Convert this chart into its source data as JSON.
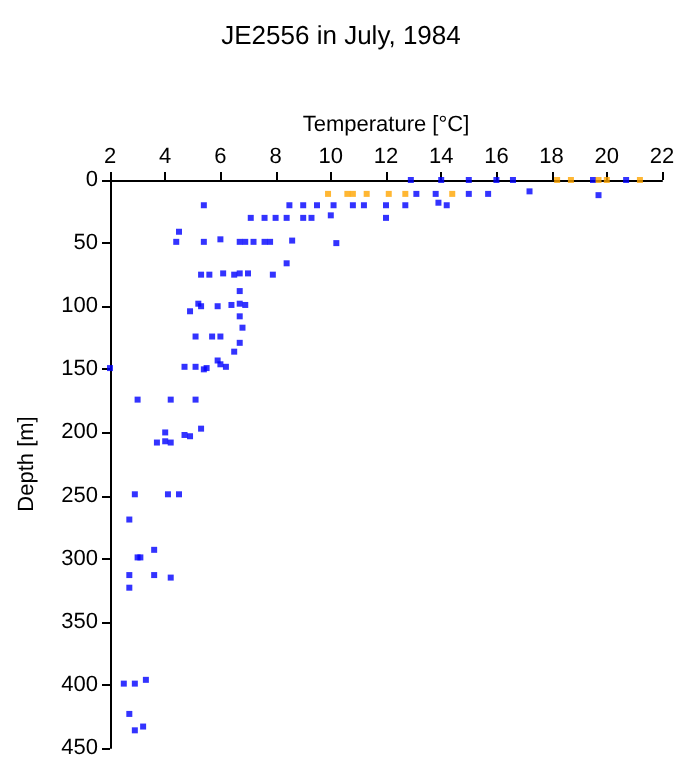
{
  "chart_data": {
    "type": "scatter",
    "title": "JE2556 in July, 1984",
    "xlabel": "Temperature [°C]",
    "ylabel": "Depth [m]",
    "xlim": [
      2,
      22
    ],
    "xticks": [
      2,
      4,
      6,
      8,
      10,
      12,
      14,
      16,
      18,
      20,
      22
    ],
    "ylim": [
      450,
      0
    ],
    "yticks": [
      0,
      50,
      100,
      150,
      200,
      250,
      300,
      350,
      400,
      450
    ],
    "grid": false,
    "marker": "square",
    "series": [
      {
        "color": "#0000ff",
        "x": [
          12.9,
          14.0,
          15.0,
          16.0,
          16.6,
          19.5,
          20.7,
          13.1,
          13.8,
          15.0,
          15.7,
          17.2,
          19.7,
          5.4,
          8.5,
          9.0,
          9.5,
          10.1,
          10.8,
          11.2,
          12.0,
          12.7,
          13.9,
          14.2,
          4.5,
          7.1,
          7.6,
          8.0,
          8.4,
          9.0,
          9.3,
          10.0,
          12.0,
          4.4,
          5.4,
          6.0,
          6.7,
          6.9,
          7.2,
          7.6,
          7.8,
          8.6,
          10.2,
          8.4,
          5.3,
          5.6,
          6.1,
          6.5,
          6.7,
          7.0,
          7.9,
          6.7,
          4.9,
          5.2,
          5.3,
          5.9,
          6.4,
          6.7,
          6.9,
          6.7,
          6.8,
          6.7,
          6.5,
          5.1,
          5.7,
          6.0,
          5.9,
          6.0,
          6.2,
          2.0,
          4.7,
          5.1,
          5.4,
          5.5,
          3.0,
          4.2,
          5.1,
          4.0,
          4.0,
          3.7,
          4.2,
          4.7,
          4.9,
          5.3,
          2.9,
          4.1,
          4.5,
          2.7,
          3.0,
          3.1,
          3.6,
          2.7,
          3.6,
          4.2,
          2.7,
          2.5,
          2.9,
          3.3,
          2.7,
          2.9,
          3.2
        ],
        "values": [
          0,
          0,
          0,
          0,
          0,
          0,
          0,
          11,
          11,
          11,
          11,
          9,
          12,
          20,
          20,
          20,
          20,
          20,
          20,
          20,
          20,
          20,
          18,
          20,
          41,
          30,
          30,
          30,
          30,
          30,
          30,
          28,
          30,
          49,
          49,
          47,
          49,
          49,
          49,
          49,
          49,
          48,
          50,
          66,
          75,
          75,
          74,
          75,
          74,
          74,
          75,
          88,
          104,
          98,
          100,
          100,
          99,
          98,
          99,
          108,
          117,
          129,
          136,
          124,
          124,
          124,
          143,
          146,
          148,
          149,
          148,
          148,
          150,
          149,
          174,
          174,
          174,
          200,
          207,
          208,
          208,
          202,
          203,
          197,
          249,
          249,
          249,
          269,
          299,
          299,
          293,
          313,
          313,
          315,
          323,
          399,
          399,
          396,
          423,
          436,
          433
        ]
      },
      {
        "color": "#ffa500",
        "x": [
          18.2,
          18.7,
          19.7,
          20.0,
          21.2,
          9.9,
          10.6,
          10.8,
          11.3,
          12.1,
          12.7,
          14.4
        ],
        "values": [
          0,
          0,
          0,
          0,
          0,
          11,
          11,
          11,
          11,
          11,
          11,
          11
        ]
      }
    ]
  }
}
